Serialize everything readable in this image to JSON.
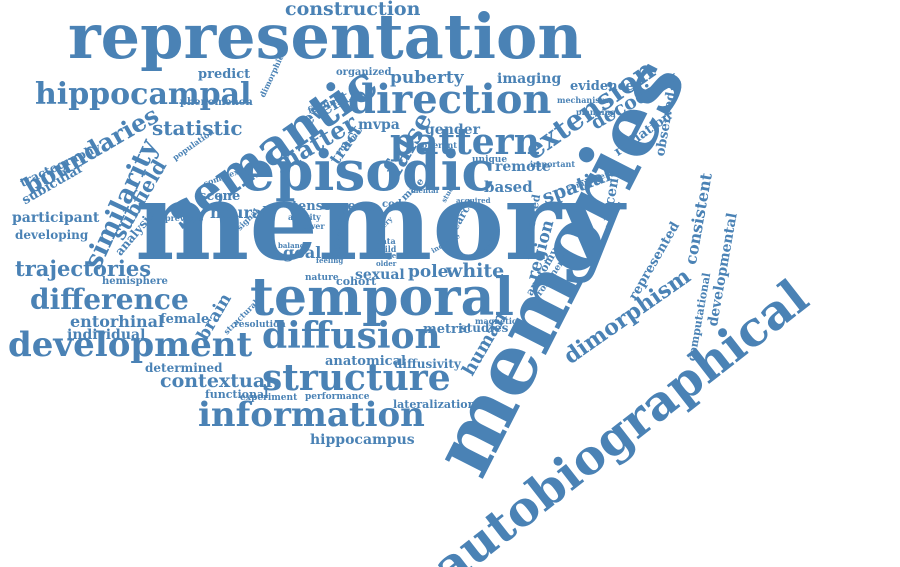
{
  "colors": {
    "word": "#4a82b5",
    "background": "#ffffff"
  },
  "words": [
    "representation",
    "construction",
    "memory",
    "memories",
    "autobiographical",
    "episodic",
    "semantic",
    "temporal",
    "direction",
    "diffusion",
    "development",
    "structure",
    "information",
    "hippocampal",
    "pattern",
    "difference",
    "extension",
    "trajectories",
    "boundaries",
    "similarity",
    "subfield",
    "statistic",
    "matter",
    "false",
    "puberty",
    "imaging",
    "evidence",
    "predict",
    "organized",
    "gender",
    "decoding",
    "radiation",
    "observed",
    "spatial",
    "remote",
    "based",
    "recent",
    "region",
    "white",
    "pole",
    "sexual",
    "goal",
    "tensor",
    "year",
    "code",
    "neural",
    "scene",
    "analysis",
    "participant",
    "developing",
    "subicular",
    "tractography",
    "entorhinal",
    "individual",
    "female",
    "brain",
    "contextual",
    "determined",
    "functional",
    "anatomical",
    "diffusivity",
    "lateralization",
    "hippocampus",
    "experiment",
    "performance",
    "metric",
    "studies",
    "human",
    "dimorphism",
    "represented",
    "consistent",
    "developmental",
    "computational",
    "anatomy",
    "magnetic",
    "event",
    "mvpa",
    "tract",
    "volume",
    "coherent",
    "unique",
    "important",
    "component",
    "mechanism",
    "planning",
    "finding",
    "dimorphic",
    "phenomenon",
    "population",
    "complex",
    "previous",
    "hemisphere",
    "resolution",
    "structural",
    "cohort",
    "nature",
    "possible",
    "signal",
    "activity",
    "lower",
    "data",
    "child",
    "male",
    "search",
    "implicated",
    "prominence",
    "method",
    "study",
    "mental",
    "every",
    "rule",
    "larger",
    "older",
    "feeling",
    "balance",
    "indicate",
    "acquired"
  ]
}
